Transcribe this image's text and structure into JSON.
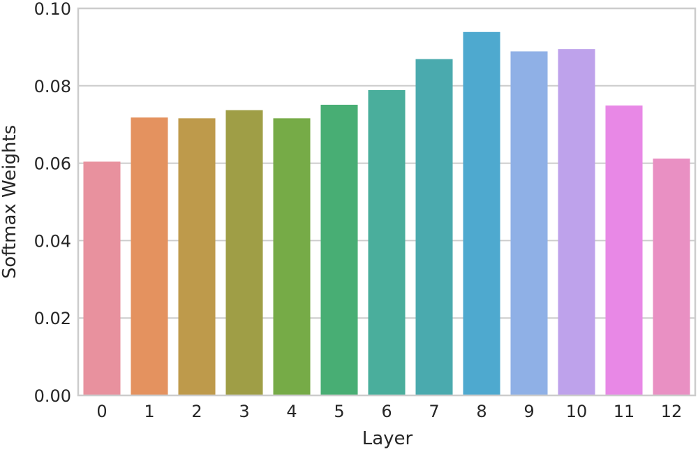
{
  "chart_data": {
    "type": "bar",
    "categories": [
      "0",
      "1",
      "2",
      "3",
      "4",
      "5",
      "6",
      "7",
      "8",
      "9",
      "10",
      "11",
      "12"
    ],
    "values": [
      0.0604,
      0.0718,
      0.0716,
      0.0737,
      0.0716,
      0.0751,
      0.0789,
      0.0869,
      0.0939,
      0.0889,
      0.0895,
      0.0749,
      0.0612
    ],
    "colors": [
      "#e8919e",
      "#e4925f",
      "#be9a4b",
      "#9f9e46",
      "#76ab47",
      "#48ae74",
      "#4aae9c",
      "#4aaaae",
      "#4ea9cf",
      "#8fb0e6",
      "#bea2eb",
      "#e888e6",
      "#e990c3"
    ],
    "xlabel": "Layer",
    "ylabel": "Softmax Weights",
    "ylim": [
      0,
      0.1
    ],
    "yticks": [
      "0.00",
      "0.02",
      "0.04",
      "0.06",
      "0.08",
      "0.10"
    ],
    "ytick_values": [
      0,
      0.02,
      0.04,
      0.06,
      0.08,
      0.1
    ],
    "grid": "horizontal",
    "style": {
      "grid_color": "#cccccc",
      "frame_color": "#cccccc",
      "text_color": "#262626"
    }
  }
}
